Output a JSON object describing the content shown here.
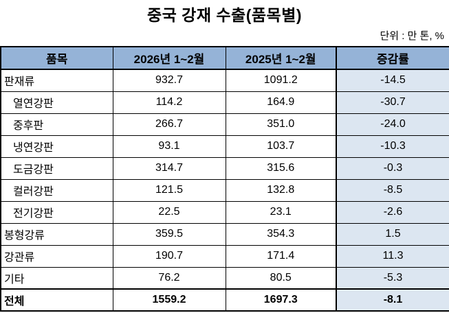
{
  "title": "중국 강재 수출(품목별)",
  "unit_note": "단위 : 만 톤, %",
  "colors": {
    "header_bg": "#95B3D7",
    "change_column_bg": "#DCE6F1",
    "border": "#000000",
    "text": "#000000"
  },
  "table": {
    "columns": [
      "품목",
      "2026년 1~2월",
      "2025년 1~2월",
      "증감률"
    ],
    "rows": [
      {
        "item": "판재류",
        "indent": false,
        "bold": false,
        "y2026": "932.7",
        "y2025": "1091.2",
        "change": "-14.5"
      },
      {
        "item": "열연강판",
        "indent": true,
        "bold": false,
        "y2026": "114.2",
        "y2025": "164.9",
        "change": "-30.7"
      },
      {
        "item": "중후판",
        "indent": true,
        "bold": false,
        "y2026": "266.7",
        "y2025": "351.0",
        "change": "-24.0"
      },
      {
        "item": "냉연강판",
        "indent": true,
        "bold": false,
        "y2026": "93.1",
        "y2025": "103.7",
        "change": "-10.3"
      },
      {
        "item": "도금강판",
        "indent": true,
        "bold": false,
        "y2026": "314.7",
        "y2025": "315.6",
        "change": "-0.3"
      },
      {
        "item": "컬러강판",
        "indent": true,
        "bold": false,
        "y2026": "121.5",
        "y2025": "132.8",
        "change": "-8.5"
      },
      {
        "item": "전기강판",
        "indent": true,
        "bold": false,
        "y2026": "22.5",
        "y2025": "23.1",
        "change": "-2.6"
      },
      {
        "item": "봉형강류",
        "indent": false,
        "bold": false,
        "y2026": "359.5",
        "y2025": "354.3",
        "change": "1.5"
      },
      {
        "item": "강관류",
        "indent": false,
        "bold": false,
        "y2026": "190.7",
        "y2025": "171.4",
        "change": "11.3"
      },
      {
        "item": "기타",
        "indent": false,
        "bold": false,
        "y2026": "76.2",
        "y2025": "80.5",
        "change": "-5.3"
      },
      {
        "item": "전체",
        "indent": false,
        "bold": true,
        "y2026": "1559.2",
        "y2025": "1697.3",
        "change": "-8.1"
      }
    ]
  },
  "chart_data": {
    "type": "table",
    "title": "중국 강재 수출(품목별)",
    "unit": "단위 : 만 톤, %",
    "columns": [
      "품목",
      "2026년 1~2월",
      "2025년 1~2월",
      "증감률"
    ],
    "rows": [
      [
        "판재류",
        932.7,
        1091.2,
        -14.5
      ],
      [
        "열연강판",
        114.2,
        164.9,
        -30.7
      ],
      [
        "중후판",
        266.7,
        351.0,
        -24.0
      ],
      [
        "냉연강판",
        93.1,
        103.7,
        -10.3
      ],
      [
        "도금강판",
        314.7,
        315.6,
        -0.3
      ],
      [
        "컬러강판",
        121.5,
        132.8,
        -8.5
      ],
      [
        "전기강판",
        22.5,
        23.1,
        -2.6
      ],
      [
        "봉형강류",
        359.5,
        354.3,
        1.5
      ],
      [
        "강관류",
        190.7,
        171.4,
        11.3
      ],
      [
        "기타",
        76.2,
        80.5,
        -5.3
      ],
      [
        "전체",
        1559.2,
        1697.3,
        -8.1
      ]
    ]
  }
}
